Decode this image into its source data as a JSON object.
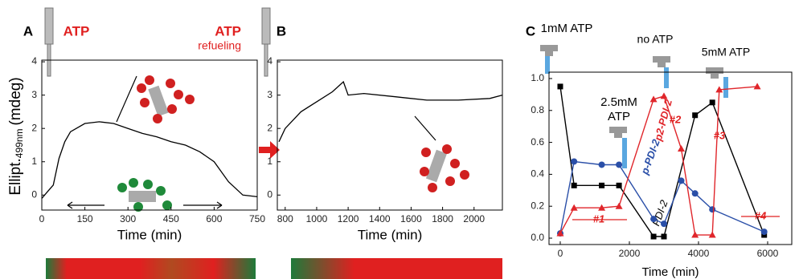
{
  "chart_data": [
    {
      "type": "line",
      "panel": "A",
      "label": "ATP",
      "xlabel": "Time (min)",
      "ylabel": "Ellipt.",
      "ylabel_sub": "499nm",
      "ylabel_unit": "(mdeg)",
      "x": [
        0,
        20,
        40,
        60,
        80,
        100,
        150,
        200,
        250,
        300,
        350,
        400,
        450,
        500,
        550,
        600,
        650,
        700,
        750
      ],
      "values": [
        -0.1,
        0.1,
        0.3,
        1.1,
        1.6,
        1.9,
        2.15,
        2.2,
        2.15,
        2.0,
        1.85,
        1.75,
        1.6,
        1.5,
        1.3,
        1.0,
        0.4,
        0.0,
        -0.05
      ],
      "color": "#000000",
      "xlim": [
        0,
        750
      ],
      "xticks": [
        0,
        150,
        300,
        450,
        600,
        750
      ],
      "ylim": [
        -0.45,
        4.05
      ],
      "yticks": [
        0,
        1,
        2,
        3,
        4
      ]
    },
    {
      "type": "line",
      "panel": "B",
      "label": "ATP",
      "sublabel": "refueling",
      "xlabel": "Time (min)",
      "x": [
        760,
        800,
        900,
        1000,
        1100,
        1170,
        1200,
        1300,
        1500,
        1700,
        1900,
        2100,
        2180
      ],
      "values": [
        1.6,
        2.0,
        2.5,
        2.8,
        3.1,
        3.4,
        3.0,
        3.05,
        2.95,
        2.85,
        2.85,
        2.9,
        3.0
      ],
      "color": "#000000",
      "xlim": [
        750,
        2180
      ],
      "xticks": [
        800,
        1000,
        1200,
        1400,
        1600,
        1800,
        2000
      ],
      "ylim": [
        -0.45,
        4.05
      ],
      "yticks": [
        0,
        1,
        2,
        3,
        4
      ]
    },
    {
      "type": "line",
      "panel": "C",
      "xlabel": "Time (min)",
      "annotations": [
        "1mM ATP",
        "2.5mM",
        "ATP",
        "no ATP",
        "5mM ATP",
        "#1",
        "#2",
        "#3",
        "#4"
      ],
      "xlim": [
        -325,
        6698
      ],
      "xticks": [
        0,
        2000,
        4000,
        6000
      ],
      "ylim": [
        -0.04,
        1.04
      ],
      "yticks": [
        {
          "value": 0,
          "label": "0.0"
        },
        0.2,
        0.4,
        0.6,
        0.8,
        {
          "value": 1,
          "label": "1.0"
        }
      ],
      "series": [
        {
          "name": "PDI-2",
          "color": "#000000",
          "marker": "square",
          "x": [
            0,
            400,
            1200,
            1700,
            2700,
            3000,
            3900,
            4400,
            5900
          ],
          "values": [
            0.95,
            0.33,
            0.33,
            0.33,
            0.01,
            0.01,
            0.77,
            0.85,
            0.02
          ]
        },
        {
          "name": "p-PDI-2",
          "color": "#2a4fa8",
          "marker": "circle",
          "x": [
            0,
            400,
            1200,
            1700,
            2700,
            3000,
            3500,
            3900,
            4400,
            5900
          ],
          "values": [
            0.03,
            0.48,
            0.46,
            0.46,
            0.12,
            0.09,
            0.36,
            0.28,
            0.18,
            0.04
          ]
        },
        {
          "name": "p2-PDI-2",
          "color": "#e0262b",
          "marker": "triangle",
          "x": [
            0,
            400,
            1200,
            1700,
            2700,
            3000,
            3500,
            3900,
            4400,
            4600,
            5700
          ],
          "values": [
            0.03,
            0.19,
            0.19,
            0.2,
            0.87,
            0.89,
            0.56,
            0.02,
            0.02,
            0.93,
            0.95
          ]
        }
      ]
    }
  ]
}
